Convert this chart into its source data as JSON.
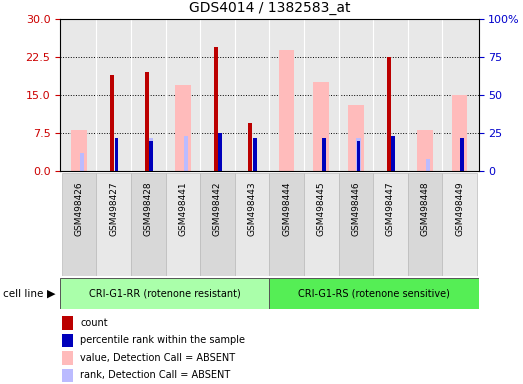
{
  "title": "GDS4014 / 1382583_at",
  "samples": [
    "GSM498426",
    "GSM498427",
    "GSM498428",
    "GSM498441",
    "GSM498442",
    "GSM498443",
    "GSM498444",
    "GSM498445",
    "GSM498446",
    "GSM498447",
    "GSM498448",
    "GSM498449"
  ],
  "group1_count": 6,
  "group2_count": 6,
  "group1_label": "CRI-G1-RR (rotenone resistant)",
  "group2_label": "CRI-G1-RS (rotenone sensitive)",
  "cell_line_label": "cell line",
  "count_values": [
    0,
    19.0,
    19.5,
    0,
    24.5,
    9.5,
    0,
    0,
    0,
    22.5,
    0,
    0
  ],
  "rank_values": [
    0,
    22.0,
    20.0,
    0,
    25.0,
    22.0,
    0,
    22.0,
    20.0,
    23.0,
    0,
    22.0
  ],
  "absent_value_values": [
    8.0,
    0,
    0,
    17.0,
    0,
    0,
    24.0,
    17.5,
    13.0,
    0,
    8.0,
    15.0
  ],
  "absent_rank_values": [
    12.0,
    0,
    22.0,
    23.0,
    0,
    0,
    0,
    0,
    22.0,
    0,
    8.0,
    0
  ],
  "count_color": "#bb0000",
  "rank_color": "#0000bb",
  "absent_value_color": "#ffbbbb",
  "absent_rank_color": "#bbbbff",
  "left_yticks": [
    0,
    7.5,
    15,
    22.5,
    30
  ],
  "right_yticks": [
    0,
    25,
    50,
    75,
    100
  ],
  "ylim_left": [
    0,
    30
  ],
  "ylim_right": [
    0,
    100
  ],
  "left_ycolor": "#cc0000",
  "right_ycolor": "#0000cc",
  "group1_bg": "#aaffaa",
  "group2_bg": "#55ee55",
  "background_color": "#ffffff",
  "plot_bg": "#e8e8e8",
  "legend_items": [
    {
      "label": "count",
      "color": "#bb0000"
    },
    {
      "label": "percentile rank within the sample",
      "color": "#0000bb"
    },
    {
      "label": "value, Detection Call = ABSENT",
      "color": "#ffbbbb"
    },
    {
      "label": "rank, Detection Call = ABSENT",
      "color": "#bbbbff"
    }
  ]
}
